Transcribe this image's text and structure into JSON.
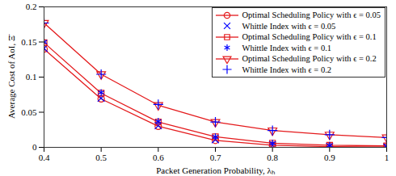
{
  "chart_data": {
    "type": "line",
    "x_label": "Packet Generation Probability, λₕ",
    "y_label": "Average Cost of AoI, Ξ̄",
    "x": [
      0.4,
      0.5,
      0.6,
      0.7,
      0.8,
      0.9,
      1
    ],
    "xlim": [
      0.4,
      1
    ],
    "xticks": [
      0.4,
      0.5,
      0.6,
      0.7,
      0.8,
      0.9,
      1
    ],
    "ylim": [
      0,
      0.2
    ],
    "yticks": [
      0,
      0.05,
      0.1,
      0.15,
      0.2
    ],
    "grid": false,
    "legend": "top-right",
    "series": [
      {
        "name": "Optimal Scheduling Policy with ϵ = 0.05",
        "type": "line",
        "color": "#e41a1c",
        "marker": "circle",
        "line_style": "solid",
        "values": [
          0.14,
          0.069,
          0.03,
          0.01,
          0.003,
          0.001,
          0.0005
        ]
      },
      {
        "name": "Whittle Index with ϵ = 0.05",
        "type": "scatter",
        "color": "#0000ff",
        "marker": "times",
        "line_style": "none",
        "values": [
          0.141,
          0.07,
          0.031,
          0.011,
          0.003,
          0.001,
          0.0005
        ]
      },
      {
        "name": "Optimal Scheduling Policy with ϵ = 0.1",
        "type": "line",
        "color": "#e41a1c",
        "marker": "square",
        "line_style": "solid",
        "values": [
          0.149,
          0.077,
          0.036,
          0.015,
          0.006,
          0.003,
          0.002
        ]
      },
      {
        "name": "Whittle Index with ϵ = 0.1",
        "type": "scatter",
        "color": "#0000ff",
        "marker": "asterisk",
        "line_style": "none",
        "values": [
          0.15,
          0.078,
          0.037,
          0.015,
          0.006,
          0.003,
          0.002
        ]
      },
      {
        "name": "Optimal Scheduling Policy with ϵ = 0.2",
        "type": "line",
        "color": "#e41a1c",
        "marker": "triangle-down",
        "line_style": "solid",
        "values": [
          0.177,
          0.104,
          0.06,
          0.036,
          0.024,
          0.018,
          0.014
        ]
      },
      {
        "name": "Whittle Index with ϵ = 0.2",
        "type": "scatter",
        "color": "#0000ff",
        "marker": "plus",
        "line_style": "none",
        "values": [
          0.177,
          0.104,
          0.061,
          0.036,
          0.024,
          0.018,
          0.014
        ]
      }
    ]
  }
}
